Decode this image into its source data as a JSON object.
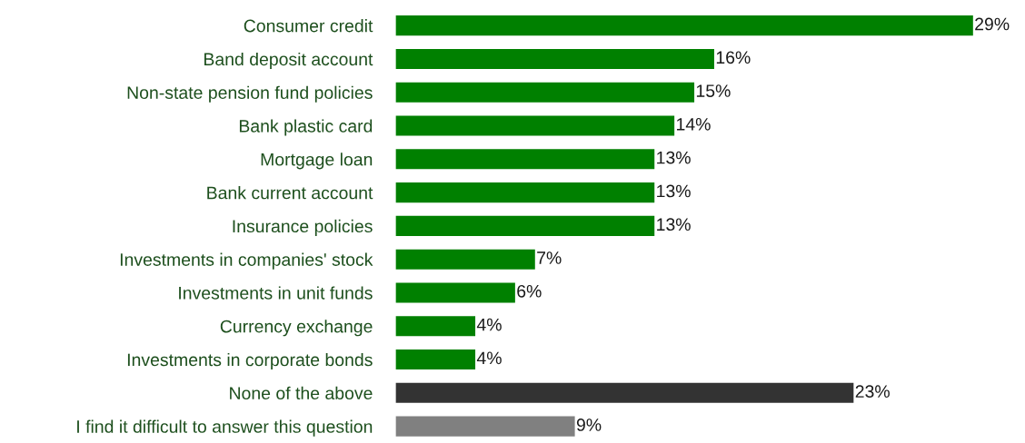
{
  "chart_data": {
    "type": "bar",
    "orientation": "horizontal",
    "categories": [
      "Consumer credit",
      "Band deposit account",
      "Non-state pension fund policies",
      "Bank plastic card",
      "Mortgage loan",
      "Bank current account",
      "Insurance policies",
      "Investments in companies' stock",
      "Investments in unit funds",
      "Currency exchange",
      "Investments in corporate bonds",
      "None of the above",
      "I find it difficult to answer this question"
    ],
    "values": [
      29,
      16,
      15,
      14,
      13,
      13,
      13,
      7,
      6,
      4,
      4,
      23,
      9
    ],
    "colors": [
      "#008000",
      "#008000",
      "#008000",
      "#008000",
      "#008000",
      "#008000",
      "#008000",
      "#008000",
      "#008000",
      "#008000",
      "#008000",
      "#333333",
      "#808080"
    ],
    "value_labels": [
      "29%",
      "16%",
      "15%",
      "14%",
      "13%",
      "13%",
      "13%",
      "7%",
      "6%",
      "4%",
      "4%",
      "23%",
      "9%"
    ],
    "grid": false,
    "legend": false
  }
}
